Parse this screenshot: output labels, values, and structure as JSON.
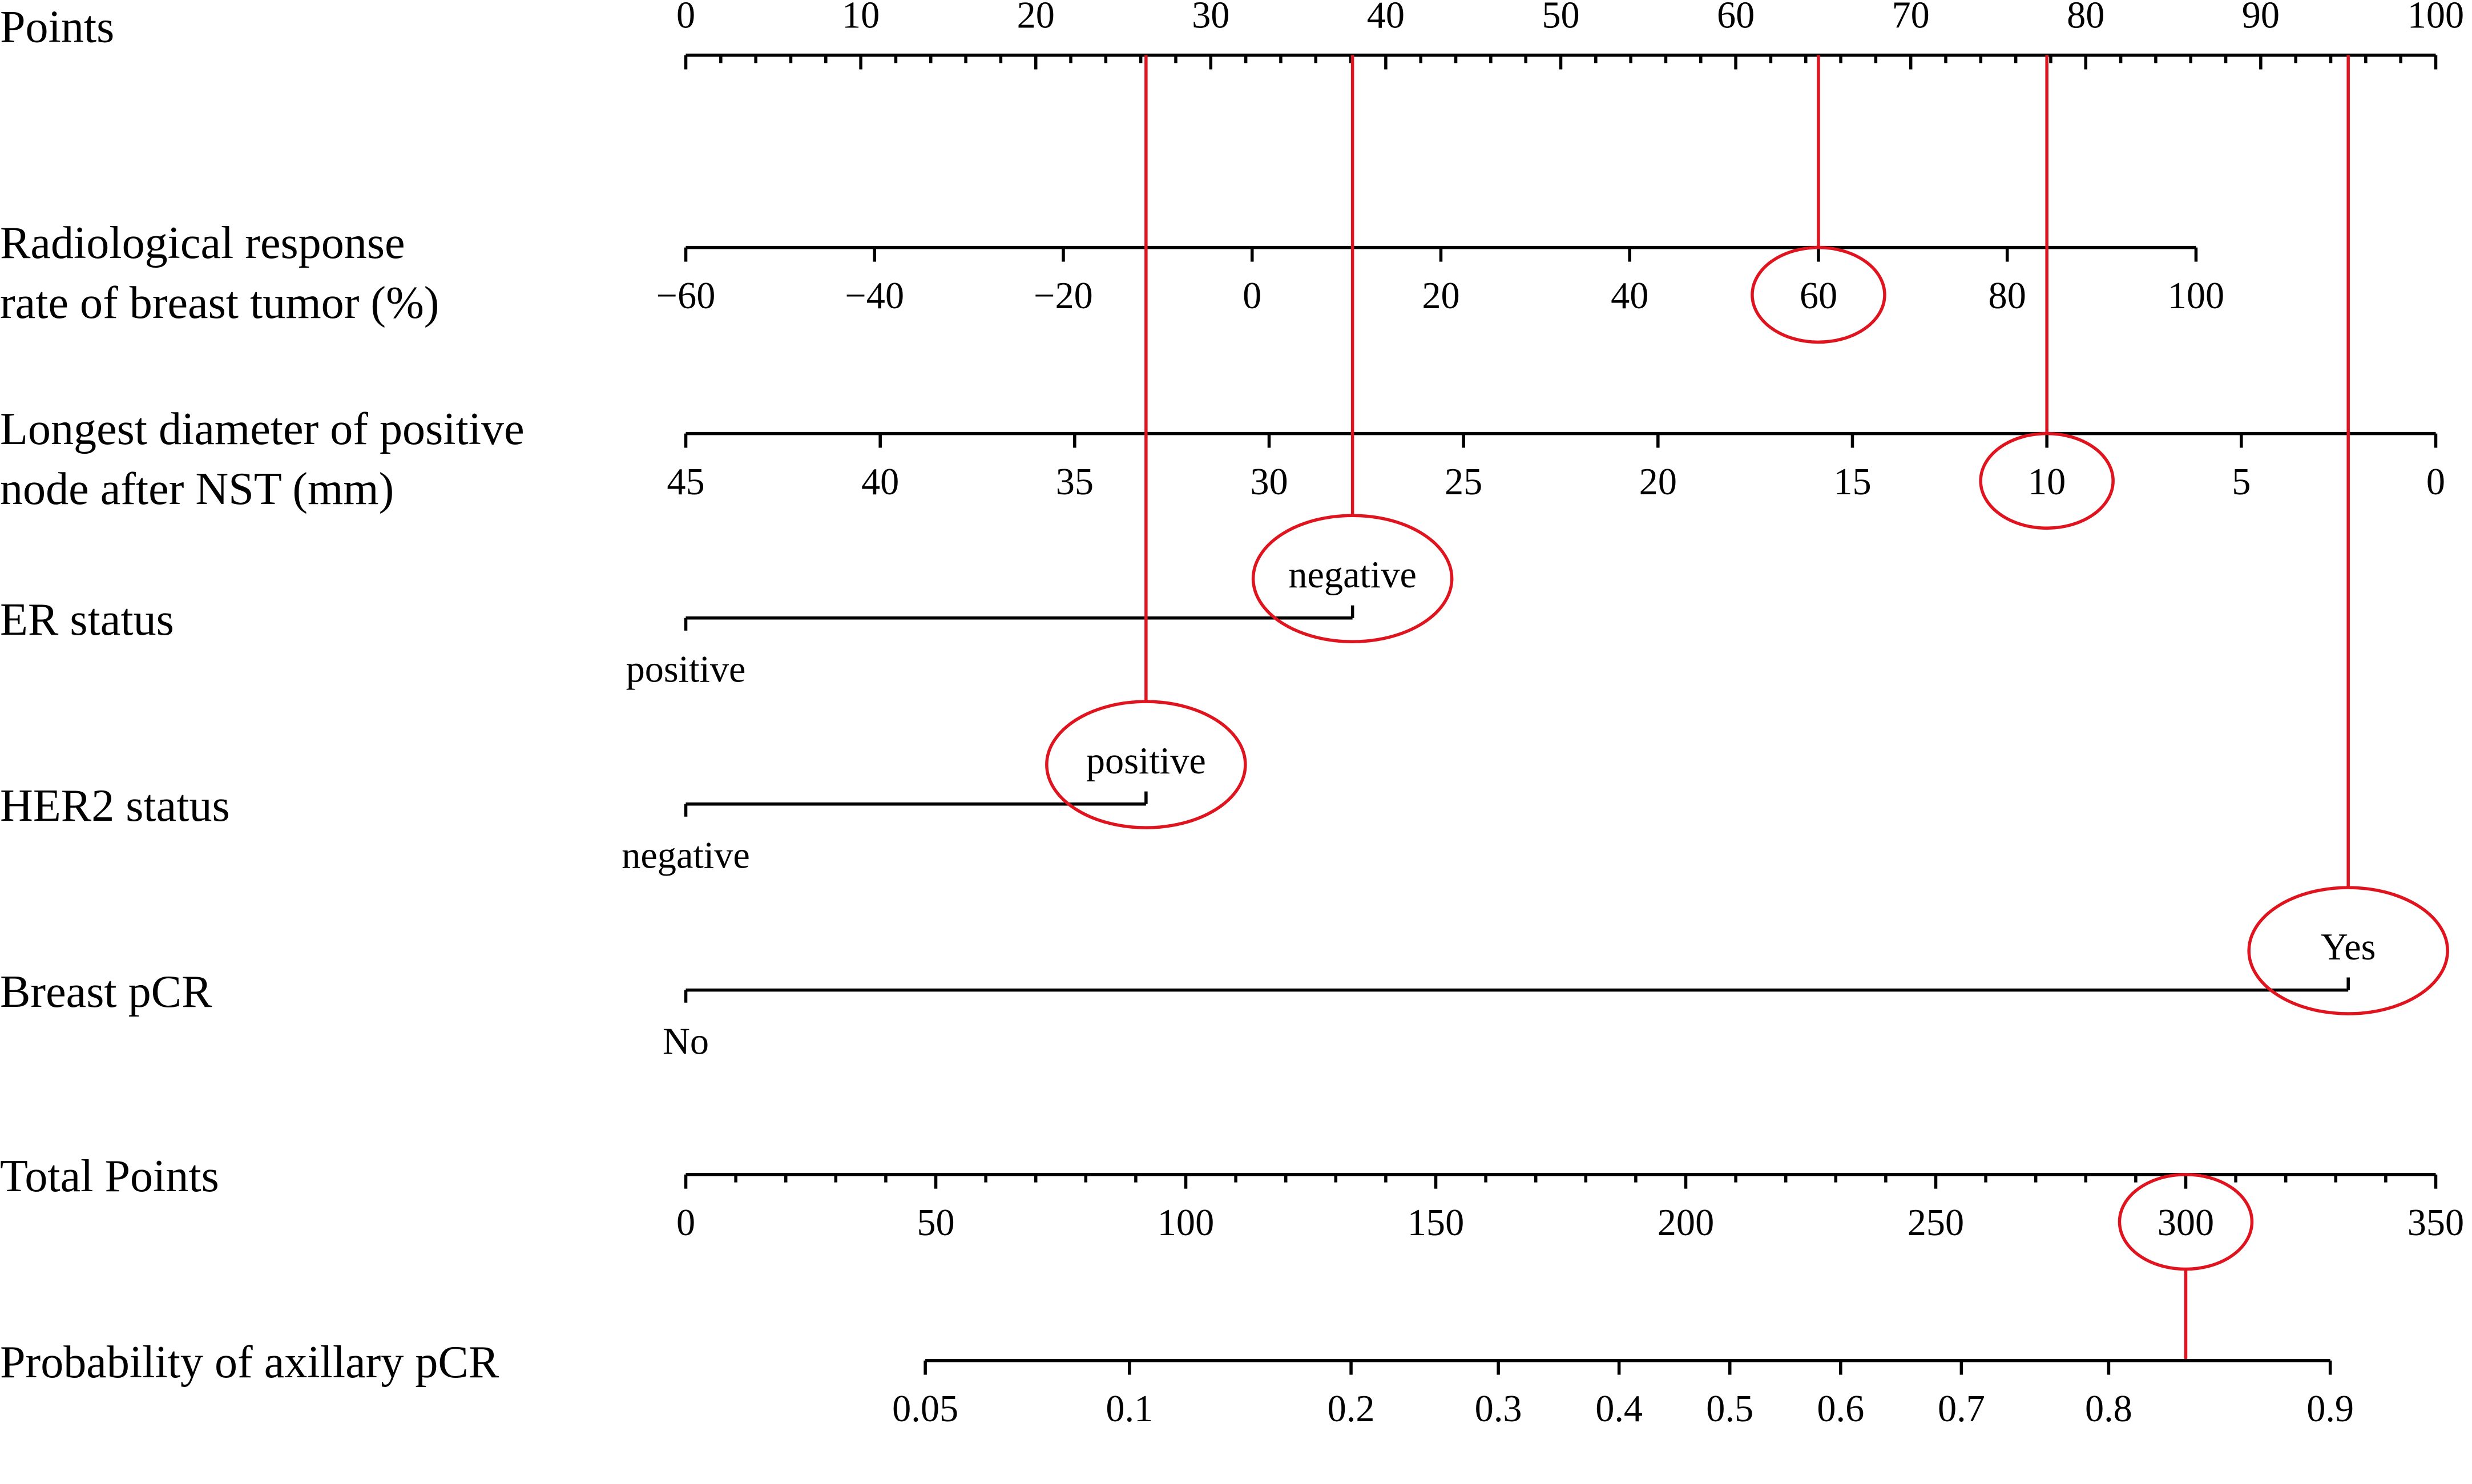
{
  "chart_data": {
    "type": "nomogram",
    "scales": [
      {
        "label": [
          "Points"
        ],
        "lim": [
          0,
          100
        ],
        "ticks": [
          0,
          10,
          20,
          30,
          40,
          50,
          60,
          70,
          80,
          90,
          100
        ],
        "minor_ticks": [
          2,
          4,
          6,
          8,
          12,
          14,
          16,
          18,
          22,
          24,
          26,
          28,
          32,
          34,
          36,
          38,
          42,
          44,
          46,
          48,
          52,
          54,
          56,
          58,
          62,
          64,
          66,
          68,
          72,
          74,
          76,
          78,
          82,
          84,
          86,
          88,
          92,
          94,
          96,
          98
        ]
      },
      {
        "label": [
          "Radiological response",
          "rate of breast tumor (%)"
        ],
        "lim": [
          -60,
          100
        ],
        "points_lim": [
          0,
          86.3
        ],
        "ticks": [
          {
            "value": -60,
            "label": "−60"
          },
          {
            "value": -40,
            "label": "−40"
          },
          {
            "value": -20,
            "label": "−20"
          },
          0,
          20,
          40,
          60,
          80,
          100
        ],
        "selected": 60
      },
      {
        "label": [
          "Longest diameter of positive",
          "node after NST (mm)"
        ],
        "lim": [
          45,
          0
        ],
        "points_lim": [
          0,
          100
        ],
        "ticks": [
          45,
          40,
          35,
          30,
          25,
          20,
          15,
          10,
          5,
          0
        ],
        "selected": 10
      },
      {
        "label": [
          "ER status"
        ],
        "categories": [
          "positive",
          "negative"
        ],
        "points": [
          0,
          38.1
        ],
        "selected": "negative"
      },
      {
        "label": [
          "HER2 status"
        ],
        "categories": [
          "negative",
          "positive"
        ],
        "points": [
          0,
          26.3
        ],
        "selected": "positive"
      },
      {
        "label": [
          "Breast pCR"
        ],
        "categories": [
          "No",
          "Yes"
        ],
        "points": [
          0,
          95
        ],
        "selected": "Yes"
      },
      {
        "label": [
          "Total Points"
        ],
        "lim": [
          0,
          350
        ],
        "ticks": [
          0,
          50,
          100,
          150,
          200,
          250,
          300,
          350
        ],
        "minor_ticks": [
          10,
          20,
          30,
          40,
          60,
          70,
          80,
          90,
          110,
          120,
          130,
          140,
          160,
          170,
          180,
          190,
          210,
          220,
          230,
          240,
          260,
          270,
          280,
          290,
          310,
          320,
          330,
          340
        ],
        "selected": 300
      },
      {
        "label": [
          "Probability of axillary pCR"
        ],
        "lim": [
          0.05,
          0.9
        ],
        "points_lim": [
          47.9,
          328.9
        ],
        "scale": "logit",
        "ticks": [
          0.05,
          0.1,
          0.2,
          0.3,
          0.4,
          0.5,
          0.6,
          0.7,
          0.8,
          0.9
        ]
      }
    ]
  }
}
